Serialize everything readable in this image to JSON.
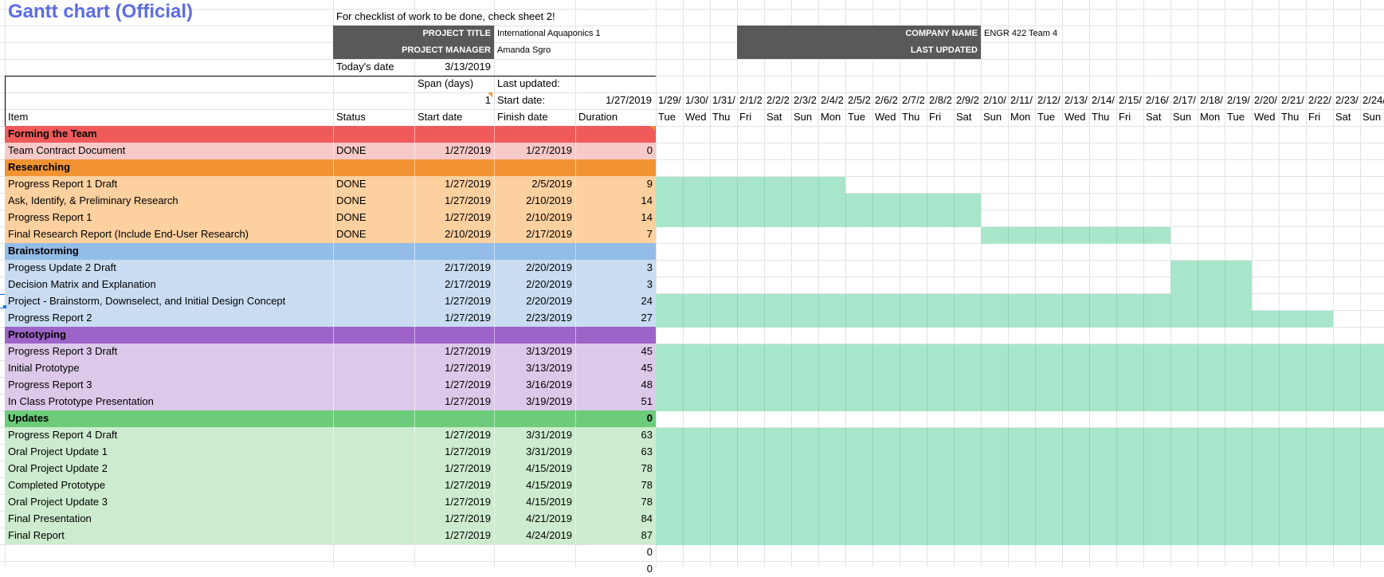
{
  "header": {
    "title": "Gantt chart (Official)",
    "note": "For checklist of work to be done, check sheet 2!",
    "project_title_label": "PROJECT TITLE",
    "project_title": "International Aquaponics 1",
    "project_manager_label": "PROJECT MANAGER",
    "project_manager": "Amanda Sgro",
    "company_name_label": "COMPANY NAME",
    "company_name": "ENGR 422 Team 4",
    "last_updated_label": "LAST UPDATED",
    "todays_date_label": "Today's date",
    "todays_date": "3/13/2019",
    "span_label": "Span (days)",
    "span_value": "1",
    "last_updated_short": "Last updated:",
    "start_date_label": "Start date:",
    "start_date_value": "1/27/2019"
  },
  "columns": {
    "item": "Item",
    "status": "Status",
    "start": "Start date",
    "finish": "Finish date",
    "duration": "Duration"
  },
  "timeline": {
    "dates": [
      "1/29/",
      "1/30/",
      "1/31/",
      "2/1/2",
      "2/2/2",
      "2/3/2",
      "2/4/2",
      "2/5/2",
      "2/6/2",
      "2/7/2",
      "2/8/2",
      "2/9/2",
      "2/10/",
      "2/11/",
      "2/12/",
      "2/13/",
      "2/14/",
      "2/15/",
      "2/16/",
      "2/17/",
      "2/18/",
      "2/19/",
      "2/20/",
      "2/21/",
      "2/22/",
      "2/23/",
      "2/24/"
    ],
    "days": [
      "Tue",
      "Wed",
      "Thu",
      "Fri",
      "Sat",
      "Sun",
      "Mon",
      "Tue",
      "Wed",
      "Thu",
      "Fri",
      "Sat",
      "Sun",
      "Mon",
      "Tue",
      "Wed",
      "Thu",
      "Fri",
      "Sat",
      "Sun",
      "Mon",
      "Tue",
      "Wed",
      "Thu",
      "Fri",
      "Sat",
      "Sun"
    ]
  },
  "colors": {
    "red_header": "#f05a5a",
    "red_row": "#f8c9c9",
    "orange_header": "#f29333",
    "orange_row": "#fdd09f",
    "blue_header": "#94bce8",
    "blue_row": "#c9dcf2",
    "purple_header": "#9e63c9",
    "purple_row": "#dcc9ea",
    "green_header": "#6ccc7b",
    "green_row": "#cdeccf",
    "bar": "#a8e6cc",
    "header_box": "#595959",
    "title": "#5c6ee0"
  },
  "rows": [
    {
      "type": "section",
      "color": "red",
      "item": "Forming the Team",
      "status": "",
      "start": "",
      "finish": "",
      "duration": ""
    },
    {
      "type": "task",
      "color": "red",
      "item": "Team Contract Document",
      "status": "DONE",
      "start": "1/27/2019",
      "finish": "1/27/2019",
      "duration": "0",
      "bar": [
        0,
        0
      ]
    },
    {
      "type": "section",
      "color": "orange",
      "item": "Researching",
      "status": "",
      "start": "",
      "finish": "",
      "duration": ""
    },
    {
      "type": "task",
      "color": "orange",
      "item": "Progress Report 1 Draft",
      "status": "DONE",
      "start": "1/27/2019",
      "finish": "2/5/2019",
      "duration": "9",
      "bar": [
        0,
        7
      ]
    },
    {
      "type": "task",
      "color": "orange",
      "item": "Ask, Identify, & Preliminary Research",
      "status": "DONE",
      "start": "1/27/2019",
      "finish": "2/10/2019",
      "duration": "14",
      "bar": [
        0,
        12
      ]
    },
    {
      "type": "task",
      "color": "orange",
      "item": "Progress Report 1",
      "status": "DONE",
      "start": "1/27/2019",
      "finish": "2/10/2019",
      "duration": "14",
      "bar": [
        0,
        12
      ]
    },
    {
      "type": "task",
      "color": "orange",
      "item": "Final Research Report (Include End-User Research)",
      "status": "DONE",
      "start": "2/10/2019",
      "finish": "2/17/2019",
      "duration": "7",
      "bar": [
        12,
        19
      ]
    },
    {
      "type": "section",
      "color": "blue",
      "item": "Brainstorming",
      "status": "",
      "start": "",
      "finish": "",
      "duration": ""
    },
    {
      "type": "task",
      "color": "blue",
      "item": "Progess Update 2 Draft",
      "status": "",
      "start": "2/17/2019",
      "finish": "2/20/2019",
      "duration": "3",
      "bar": [
        19,
        22
      ]
    },
    {
      "type": "task",
      "color": "blue",
      "item": "Decision Matrix and Explanation",
      "status": "",
      "start": "2/17/2019",
      "finish": "2/20/2019",
      "duration": "3",
      "bar": [
        19,
        22
      ]
    },
    {
      "type": "task",
      "color": "blue",
      "item": "Project - Brainstorm, Downselect, and Initial Design Concept",
      "status": "",
      "start": "1/27/2019",
      "finish": "2/20/2019",
      "duration": "24",
      "bar": [
        0,
        22
      ]
    },
    {
      "type": "task",
      "color": "blue",
      "item": "Progress Report 2",
      "status": "",
      "start": "1/27/2019",
      "finish": "2/23/2019",
      "duration": "27",
      "bar": [
        0,
        25
      ]
    },
    {
      "type": "section",
      "color": "purple",
      "item": "Prototyping",
      "status": "",
      "start": "",
      "finish": "",
      "duration": ""
    },
    {
      "type": "task",
      "color": "purple",
      "item": "Progress Report 3 Draft",
      "status": "",
      "start": "1/27/2019",
      "finish": "3/13/2019",
      "duration": "45",
      "bar": [
        0,
        27
      ]
    },
    {
      "type": "task",
      "color": "purple",
      "item": "Initial Prototype",
      "status": "",
      "start": "1/27/2019",
      "finish": "3/13/2019",
      "duration": "45",
      "bar": [
        0,
        27
      ]
    },
    {
      "type": "task",
      "color": "purple",
      "item": "Progress Report 3",
      "status": "",
      "start": "1/27/2019",
      "finish": "3/16/2019",
      "duration": "48",
      "bar": [
        0,
        27
      ]
    },
    {
      "type": "task",
      "color": "purple",
      "item": "In Class Prototype Presentation",
      "status": "",
      "start": "1/27/2019",
      "finish": "3/19/2019",
      "duration": "51",
      "bar": [
        0,
        27
      ]
    },
    {
      "type": "section",
      "color": "green",
      "item": "Updates",
      "status": "",
      "start": "",
      "finish": "",
      "duration": "0"
    },
    {
      "type": "task",
      "color": "green",
      "item": "Progress Report 4 Draft",
      "status": "",
      "start": "1/27/2019",
      "finish": "3/31/2019",
      "duration": "63",
      "bar": [
        0,
        27
      ]
    },
    {
      "type": "task",
      "color": "green",
      "item": "Oral Project Update 1",
      "status": "",
      "start": "1/27/2019",
      "finish": "3/31/2019",
      "duration": "63",
      "bar": [
        0,
        27
      ]
    },
    {
      "type": "task",
      "color": "green",
      "item": "Oral Project Update 2",
      "status": "",
      "start": "1/27/2019",
      "finish": "4/15/2019",
      "duration": "78",
      "bar": [
        0,
        27
      ]
    },
    {
      "type": "task",
      "color": "green",
      "item": "Completed Prototype",
      "status": "",
      "start": "1/27/2019",
      "finish": "4/15/2019",
      "duration": "78",
      "bar": [
        0,
        27
      ]
    },
    {
      "type": "task",
      "color": "green",
      "item": "Oral Project Update 3",
      "status": "",
      "start": "1/27/2019",
      "finish": "4/15/2019",
      "duration": "78",
      "bar": [
        0,
        27
      ]
    },
    {
      "type": "task",
      "color": "green",
      "item": "Final Presentation",
      "status": "",
      "start": "1/27/2019",
      "finish": "4/21/2019",
      "duration": "84",
      "bar": [
        0,
        27
      ]
    },
    {
      "type": "task",
      "color": "green",
      "item": "Final Report",
      "status": "",
      "start": "1/27/2019",
      "finish": "4/24/2019",
      "duration": "87",
      "bar": [
        0,
        27
      ]
    },
    {
      "type": "blank",
      "color": "none",
      "item": "",
      "status": "",
      "start": "",
      "finish": "",
      "duration": "0"
    },
    {
      "type": "blank",
      "color": "none",
      "item": "",
      "status": "",
      "start": "",
      "finish": "",
      "duration": "0"
    }
  ]
}
